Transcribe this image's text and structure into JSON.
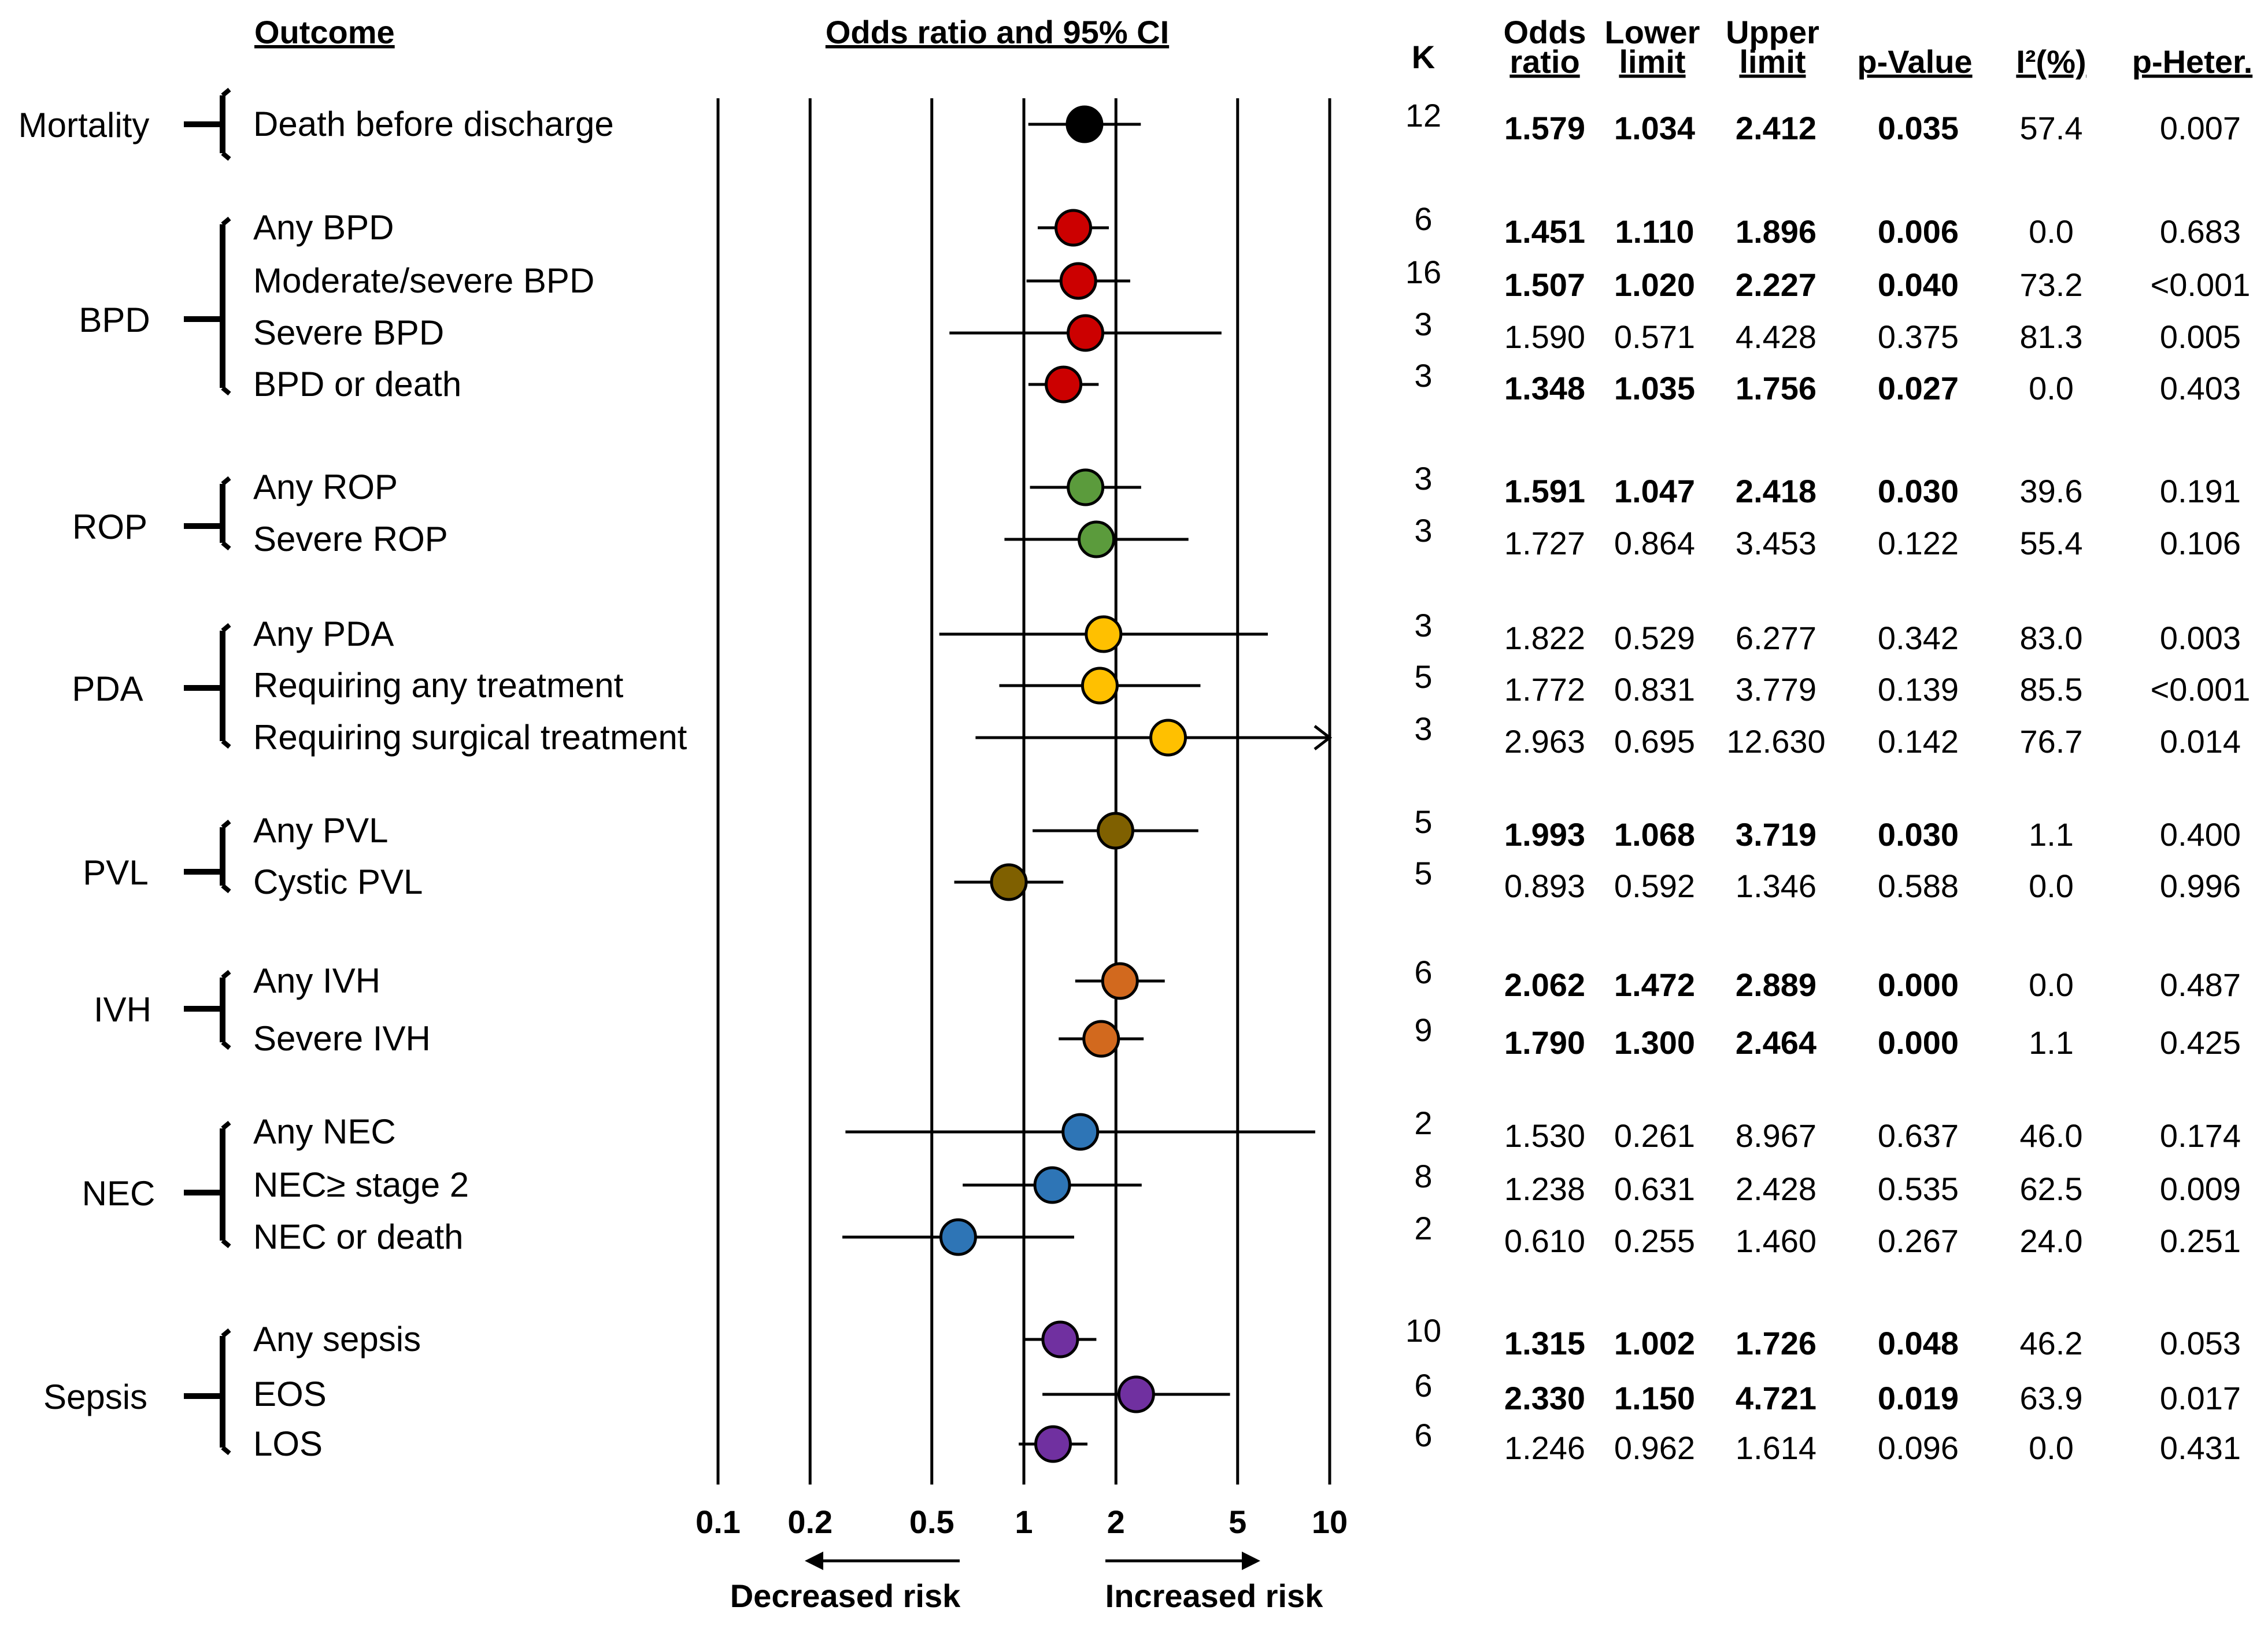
{
  "chart_data": {
    "type": "forest",
    "title": "Odds ratio and 95% CI",
    "outcome_header": "Outcome",
    "x_scale": "log",
    "xlim": [
      0.1,
      10
    ],
    "x_ticks": [
      0.1,
      0.2,
      0.5,
      1,
      2,
      5,
      10
    ],
    "x_tick_labels": [
      "0.1",
      "0.2",
      "0.5",
      "1",
      "2",
      "5",
      "10"
    ],
    "reference_line": 1,
    "direction_labels": {
      "left": "Decreased risk",
      "right": "Increased risk"
    },
    "columns": {
      "k": "K",
      "or_line1": "Odds",
      "or_line2": "ratio",
      "lower_line1": "Lower",
      "lower_line2": "limit",
      "upper_line1": "Upper",
      "upper_line2": "limit",
      "p": "p-Value",
      "i2": "I²(%)",
      "phet": "p-Heter."
    },
    "groups": [
      {
        "name": "Mortality",
        "color": "#000000",
        "rows": [
          {
            "label": "Death before discharge",
            "k": "12",
            "or": 1.579,
            "lower": 1.034,
            "upper": 2.412,
            "or_text": "1.579",
            "lower_text": "1.034",
            "upper_text": "2.412",
            "p": "0.035",
            "i2": "57.4",
            "phet": "0.007",
            "significant": true
          }
        ]
      },
      {
        "name": "BPD",
        "color": "#cc0000",
        "rows": [
          {
            "label": "Any BPD",
            "k": "6",
            "or": 1.451,
            "lower": 1.11,
            "upper": 1.896,
            "or_text": "1.451",
            "lower_text": "1.110",
            "upper_text": "1.896",
            "p": "0.006",
            "i2": "0.0",
            "phet": "0.683",
            "significant": true
          },
          {
            "label": "Moderate/severe BPD",
            "k": "16",
            "or": 1.507,
            "lower": 1.02,
            "upper": 2.227,
            "or_text": "1.507",
            "lower_text": "1.020",
            "upper_text": "2.227",
            "p": "0.040",
            "i2": "73.2",
            "phet": "<0.001",
            "significant": true
          },
          {
            "label": "Severe BPD",
            "k": "3",
            "or": 1.59,
            "lower": 0.571,
            "upper": 4.428,
            "or_text": "1.590",
            "lower_text": "0.571",
            "upper_text": "4.428",
            "p": "0.375",
            "i2": "81.3",
            "phet": "0.005",
            "significant": false
          },
          {
            "label": "BPD or death",
            "k": "3",
            "or": 1.348,
            "lower": 1.035,
            "upper": 1.756,
            "or_text": "1.348",
            "lower_text": "1.035",
            "upper_text": "1.756",
            "p": "0.027",
            "i2": "0.0",
            "phet": "0.403",
            "significant": true
          }
        ]
      },
      {
        "name": "ROP",
        "color": "#5b9b3c",
        "rows": [
          {
            "label": "Any ROP",
            "k": "3",
            "or": 1.591,
            "lower": 1.047,
            "upper": 2.418,
            "or_text": "1.591",
            "lower_text": "1.047",
            "upper_text": "2.418",
            "p": "0.030",
            "i2": "39.6",
            "phet": "0.191",
            "significant": true
          },
          {
            "label": "Severe ROP",
            "k": "3",
            "or": 1.727,
            "lower": 0.864,
            "upper": 3.453,
            "or_text": "1.727",
            "lower_text": "0.864",
            "upper_text": "3.453",
            "p": "0.122",
            "i2": "55.4",
            "phet": "0.106",
            "significant": false
          }
        ]
      },
      {
        "name": "PDA",
        "color": "#ffc000",
        "rows": [
          {
            "label": "Any PDA",
            "k": "3",
            "or": 1.822,
            "lower": 0.529,
            "upper": 6.277,
            "or_text": "1.822",
            "lower_text": "0.529",
            "upper_text": "6.277",
            "p": "0.342",
            "i2": "83.0",
            "phet": "0.003",
            "significant": false
          },
          {
            "label": "Requiring any treatment",
            "k": "5",
            "or": 1.772,
            "lower": 0.831,
            "upper": 3.779,
            "or_text": "1.772",
            "lower_text": "0.831",
            "upper_text": "3.779",
            "p": "0.139",
            "i2": "85.5",
            "phet": "<0.001",
            "significant": false
          },
          {
            "label": "Requiring surgical treatment",
            "k": "3",
            "or": 2.963,
            "lower": 0.695,
            "upper": 12.63,
            "or_text": "2.963",
            "lower_text": "0.695",
            "upper_text": "12.630",
            "p": "0.142",
            "i2": "76.7",
            "phet": "0.014",
            "significant": false
          }
        ]
      },
      {
        "name": "PVL",
        "color": "#7f6000",
        "rows": [
          {
            "label": "Any PVL",
            "k": "5",
            "or": 1.993,
            "lower": 1.068,
            "upper": 3.719,
            "or_text": "1.993",
            "lower_text": "1.068",
            "upper_text": "3.719",
            "p": "0.030",
            "i2": "1.1",
            "phet": "0.400",
            "significant": true
          },
          {
            "label": "Cystic PVL",
            "k": "5",
            "or": 0.893,
            "lower": 0.592,
            "upper": 1.346,
            "or_text": "0.893",
            "lower_text": "0.592",
            "upper_text": "1.346",
            "p": "0.588",
            "i2": "0.0",
            "phet": "0.996",
            "significant": false
          }
        ]
      },
      {
        "name": "IVH",
        "color": "#d2691e",
        "rows": [
          {
            "label": "Any IVH",
            "k": "6",
            "or": 2.062,
            "lower": 1.472,
            "upper": 2.889,
            "or_text": "2.062",
            "lower_text": "1.472",
            "upper_text": "2.889",
            "p": "0.000",
            "i2": "0.0",
            "phet": "0.487",
            "significant": true
          },
          {
            "label": "Severe IVH",
            "k": "9",
            "or": 1.79,
            "lower": 1.3,
            "upper": 2.464,
            "or_text": "1.790",
            "lower_text": "1.300",
            "upper_text": "2.464",
            "p": "0.000",
            "i2": "1.1",
            "phet": "0.425",
            "significant": true
          }
        ]
      },
      {
        "name": "NEC",
        "color": "#2e75b6",
        "rows": [
          {
            "label": "Any NEC",
            "k": "2",
            "or": 1.53,
            "lower": 0.261,
            "upper": 8.967,
            "or_text": "1.530",
            "lower_text": "0.261",
            "upper_text": "8.967",
            "p": "0.637",
            "i2": "46.0",
            "phet": "0.174",
            "significant": false
          },
          {
            "label": "NEC≥ stage 2",
            "k": "8",
            "or": 1.238,
            "lower": 0.631,
            "upper": 2.428,
            "or_text": "1.238",
            "lower_text": "0.631",
            "upper_text": "2.428",
            "p": "0.535",
            "i2": "62.5",
            "phet": "0.009",
            "significant": false
          },
          {
            "label": "NEC or death",
            "k": "2",
            "or": 0.61,
            "lower": 0.255,
            "upper": 1.46,
            "or_text": "0.610",
            "lower_text": "0.255",
            "upper_text": "1.460",
            "p": "0.267",
            "i2": "24.0",
            "phet": "0.251",
            "significant": false
          }
        ]
      },
      {
        "name": "Sepsis",
        "color": "#7030a0",
        "rows": [
          {
            "label": "Any sepsis",
            "k": "10",
            "or": 1.315,
            "lower": 1.002,
            "upper": 1.726,
            "or_text": "1.315",
            "lower_text": "1.002",
            "upper_text": "1.726",
            "p": "0.048",
            "i2": "46.2",
            "phet": "0.053",
            "significant": true
          },
          {
            "label": "EOS",
            "k": "6",
            "or": 2.33,
            "lower": 1.15,
            "upper": 4.721,
            "or_text": "2.330",
            "lower_text": "1.150",
            "upper_text": "4.721",
            "p": "0.019",
            "i2": "63.9",
            "phet": "0.017",
            "significant": true
          },
          {
            "label": "LOS",
            "k": "6",
            "or": 1.246,
            "lower": 0.962,
            "upper": 1.614,
            "or_text": "1.246",
            "lower_text": "0.962",
            "upper_text": "1.614",
            "p": "0.096",
            "i2": "0.0",
            "phet": "0.431",
            "significant": false
          }
        ]
      }
    ]
  }
}
